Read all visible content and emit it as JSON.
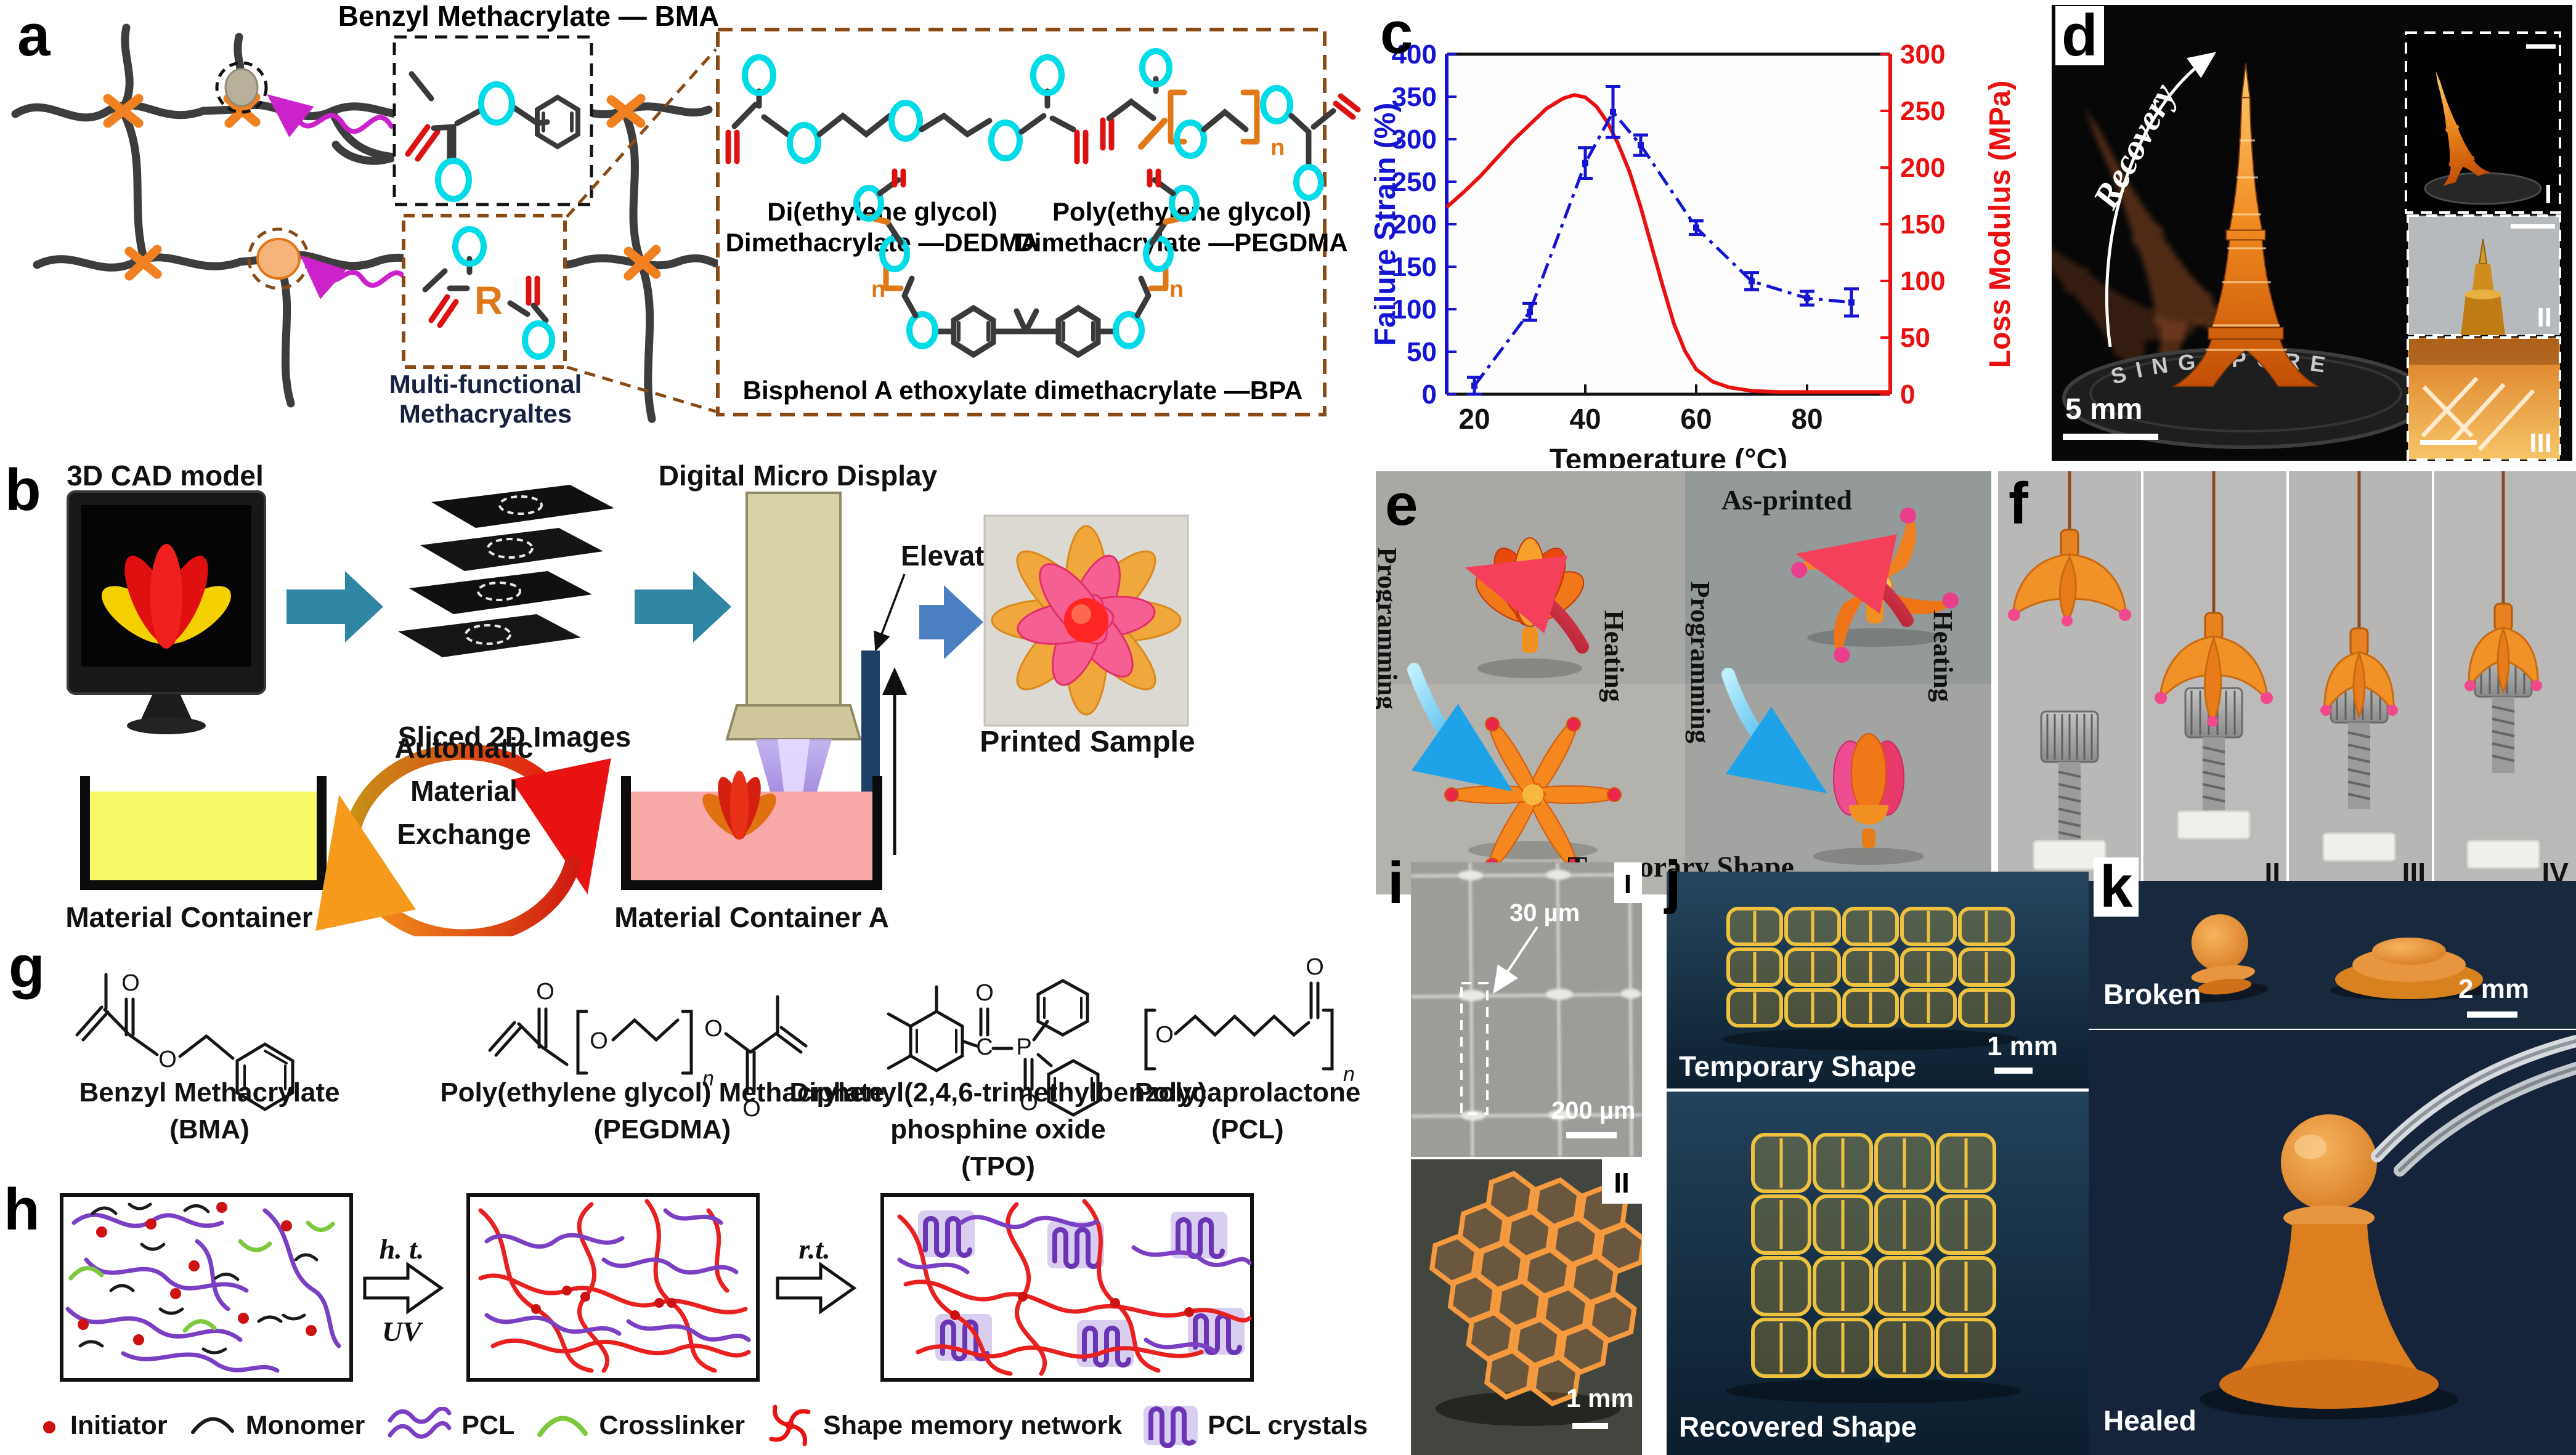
{
  "panels": {
    "a": {
      "label": "a",
      "bma_title": "Benzyl Methacrylate  — BMA",
      "multifunctional_line1": "Multi-functional",
      "multifunctional_line2": "Methacryaltes",
      "r_label": "R",
      "n_label": "n",
      "dedma_line1": "Di(ethylene glycol)",
      "dedma_line2": "Dimethacrylate —DEDMA",
      "pegdma_line1": "Poly(ethylene glycol)",
      "pegdma_line2": "Dimethacrylate —PEGDMA",
      "bpa_label": "Bisphenol A ethoxylate dimethacrylate —BPA"
    },
    "b": {
      "label": "b",
      "cad_label": "3D CAD model",
      "sliced_label": "Sliced 2D Images",
      "dmd_label": "Digital Micro Display",
      "elevator_label": "Elevator",
      "exchange_line1": "Automatic",
      "exchange_line2": "Material",
      "exchange_line3": "Exchange",
      "container_b_label": "Material Container B",
      "container_a_label": "Material Container A",
      "printed_label": "Printed Sample"
    },
    "c": {
      "label": "c"
    },
    "d": {
      "label": "d",
      "recovery_label": "Recovery",
      "scale_bar": "5 mm",
      "coin_text": "SINGAPORE",
      "inset1": "I",
      "inset2": "II",
      "inset3": "III"
    },
    "e": {
      "label": "e",
      "as_printed": "As-printed",
      "temporary": "Temporary Shape",
      "programming_left": "Programming",
      "heating_left": "Heating",
      "programming_right": "Programming",
      "heating_right": "Heating"
    },
    "f": {
      "label": "f",
      "step1": "I",
      "step2": "II",
      "step3": "III",
      "step4": "IV"
    },
    "g": {
      "label": "g",
      "name1_l1": "Benzyl Methacrylate",
      "name1_l2": "(BMA)",
      "name2_l1": "Poly(ethylene glycol) Methacrylate",
      "name2_l2": "(PEGDMA)",
      "name3_l1": "Diphenyl(2,4,6-trimethylbenzoly)",
      "name3_l2": "phosphine oxide",
      "name3_l3": "(TPO)",
      "name4_l1": "Polycaprolactone",
      "name4_l2": "(PCL)",
      "atom_o": "O",
      "atom_c": "C",
      "atom_p": "P",
      "atom_n": "n"
    },
    "h": {
      "label": "h",
      "arrow1_top": "h. t.",
      "arrow1_bottom": "UV",
      "arrow2_top": "r.t.",
      "legend": [
        {
          "icon": "initiator",
          "label": "Initiator"
        },
        {
          "icon": "monomer",
          "label": "Monomer"
        },
        {
          "icon": "pcl",
          "label": "PCL"
        },
        {
          "icon": "crosslinker",
          "label": "Crosslinker"
        },
        {
          "icon": "shape-memory-network",
          "label": "Shape memory network"
        },
        {
          "icon": "pcl-crystals",
          "label": "PCL crystals"
        }
      ]
    },
    "i": {
      "label": "i",
      "sem_tag": "I",
      "annotation": "30 µm",
      "sem_scale": "200 µm",
      "photo_tag": "II",
      "photo_scale": "1 mm"
    },
    "j": {
      "label": "j",
      "top_caption": "Temporary Shape",
      "scale": "1 mm",
      "bottom_caption": "Recovered Shape"
    },
    "k": {
      "label": "k",
      "top_caption": "Broken",
      "scale": "2 mm",
      "bottom_caption": "Healed"
    }
  },
  "chart_data": {
    "type": "line",
    "title": "",
    "xlabel": "Temperature (°C)",
    "ylabel_left": "Failure Strain (%)",
    "ylabel_right": "Loss Modulus (MPa)",
    "xlim": [
      15,
      95
    ],
    "ylim_left": [
      0,
      400
    ],
    "ylim_right": [
      0,
      300
    ],
    "xticks": [
      20,
      40,
      60,
      80
    ],
    "yticks_left": [
      0,
      50,
      100,
      150,
      200,
      250,
      300,
      350,
      400
    ],
    "yticks_right": [
      0,
      50,
      100,
      150,
      200,
      250,
      300
    ],
    "grid": false,
    "legend_position": "none",
    "series": [
      {
        "name": "Failure Strain",
        "axis": "left",
        "color": "#1414d2",
        "style": "dashdot-errorbar",
        "x": [
          20,
          30,
          40,
          45,
          50,
          60,
          70,
          80,
          88
        ],
        "y": [
          10,
          97,
          272,
          332,
          293,
          196,
          133,
          113,
          108
        ],
        "yerr": [
          10,
          10,
          18,
          30,
          12,
          8,
          10,
          8,
          16
        ]
      },
      {
        "name": "Loss Modulus",
        "axis": "right",
        "color": "#ea1010",
        "style": "solid",
        "x": [
          15,
          18,
          21,
          24,
          27,
          30,
          33,
          36,
          38,
          40,
          42,
          44,
          46,
          48,
          50,
          52,
          54,
          56,
          58,
          60,
          63,
          66,
          70,
          75,
          80,
          85,
          90,
          95
        ],
        "y": [
          165,
          178,
          192,
          208,
          224,
          238,
          252,
          261,
          264,
          262,
          254,
          240,
          220,
          196,
          165,
          130,
          95,
          62,
          38,
          22,
          11,
          6,
          3,
          2,
          2,
          2,
          2,
          2
        ]
      }
    ]
  }
}
